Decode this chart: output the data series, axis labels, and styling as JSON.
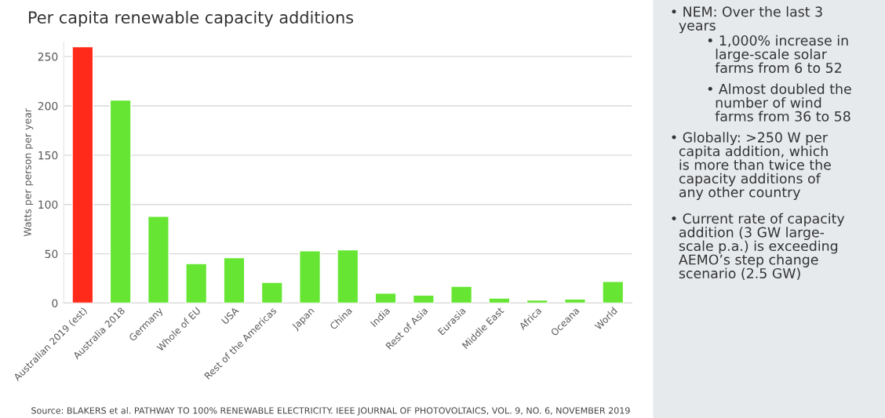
{
  "chart_data": {
    "type": "bar",
    "title": "Per capita renewable capacity additions",
    "ylabel": "Watts per person per year",
    "categories": [
      "Australian 2019 (est)",
      "Australia 2018",
      "Germany",
      "Whole of EU",
      "USA",
      "Rest of the Americas",
      "Japan",
      "China",
      "India",
      "Rest of Asia",
      "Eurasia",
      "Middle East",
      "Africa",
      "Oceana",
      "World"
    ],
    "values": [
      260,
      206,
      88,
      40,
      46,
      21,
      53,
      54,
      10,
      8,
      17,
      5,
      3,
      4,
      22
    ],
    "colors": [
      "#ff2a1a",
      "#66e633",
      "#66e633",
      "#66e633",
      "#66e633",
      "#66e633",
      "#66e633",
      "#66e633",
      "#66e633",
      "#66e633",
      "#66e633",
      "#66e633",
      "#66e633",
      "#66e633",
      "#66e633"
    ],
    "ylim": [
      0,
      265
    ],
    "yticks": [
      0,
      50,
      100,
      150,
      200,
      250
    ],
    "grid": "y",
    "legend": false,
    "annotations": [
      "• NEM: Over the last 3\n  years",
      "• 1,000% increase in\n  large-scale solar\n  farms from 6 to 52",
      "• Almost doubled the\n  number of wind\n  farms from 36 to 58",
      "• Globally: >250 W per\n  capita addition, which\n  is more than twice the\n  capacity additions of\n  any other country",
      "• Current rate of capacity\n  addition (3 GW large-\n  scale p.a.) is exceeding\n  AEMO’s step change\n  scenario (2.5 GW)",
      "Source: BLAKERS et al. PATHWAY TO 100% RENEWABLE ELECTRICITY. IEEE JOURNAL OF PHOTOVOLTAICS, VOL. 9, NO. 6, NOVEMBER 2019"
    ]
  }
}
